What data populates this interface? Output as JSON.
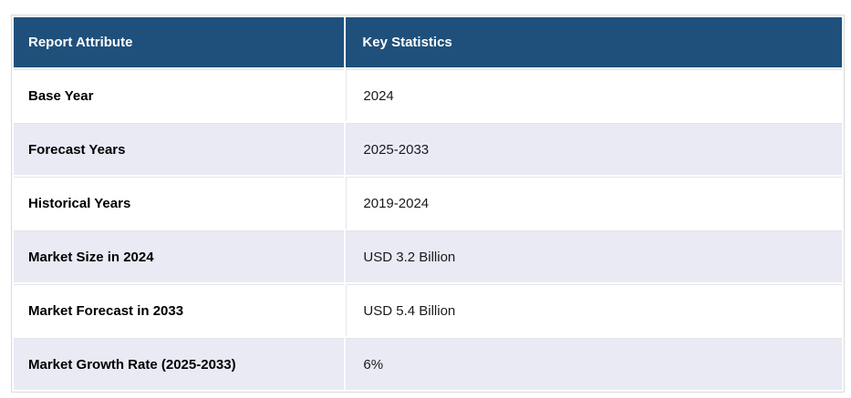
{
  "table": {
    "header": {
      "attribute": "Report Attribute",
      "statistics": "Key Statistics"
    },
    "rows": [
      {
        "attribute": "Base Year",
        "value": "2024"
      },
      {
        "attribute": "Forecast Years",
        "value": "2025-2033"
      },
      {
        "attribute": "Historical Years",
        "value": "2019-2024"
      },
      {
        "attribute": "Market Size in 2024",
        "value": "USD 3.2 Billion"
      },
      {
        "attribute": "Market Forecast in 2033",
        "value": "USD 5.4 Billion"
      },
      {
        "attribute": "Market Growth Rate (2025-2033)",
        "value": "6%"
      }
    ]
  },
  "colors": {
    "header_bg": "#1F507B",
    "stripe_bg": "#E9EAF4",
    "outer_border": "#D9D9D9",
    "inner_border": "#E4E5EA"
  }
}
